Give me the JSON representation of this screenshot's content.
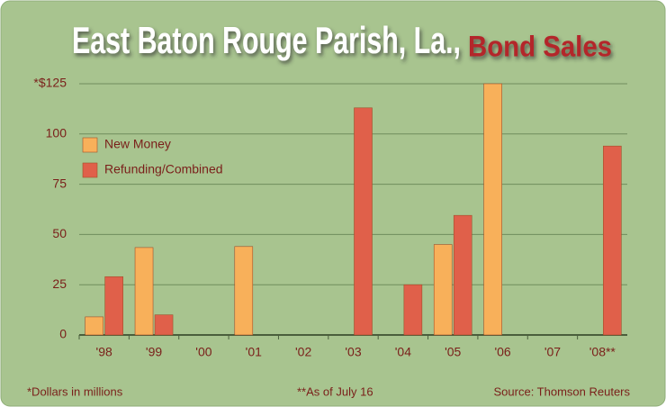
{
  "chart_data": {
    "type": "bar",
    "title": "East Baton Rouge Parish, La.,",
    "subtitle": "Bond Sales",
    "categories": [
      "'98",
      "'99",
      "'00",
      "'01",
      "'02",
      "'03",
      "'04",
      "'05",
      "'06",
      "'07",
      "'08**"
    ],
    "series": [
      {
        "name": "New Money",
        "color": "#f8b05a",
        "values": [
          9,
          43.5,
          null,
          44,
          null,
          null,
          null,
          45,
          125,
          null,
          null
        ]
      },
      {
        "name": "Refunding/Combined",
        "color": "#e0604a",
        "values": [
          29,
          10,
          null,
          null,
          null,
          113,
          25,
          59.5,
          null,
          null,
          94
        ]
      }
    ],
    "ylim": [
      0,
      125
    ],
    "yticks": [
      0,
      25,
      50,
      75,
      100,
      {
        "value": 125,
        "label": "*$125"
      }
    ],
    "grid": true,
    "legend": "upper-left",
    "notes": [
      "*Dollars in millions",
      "**As of July 16",
      "Source: Thomson Reuters"
    ]
  }
}
